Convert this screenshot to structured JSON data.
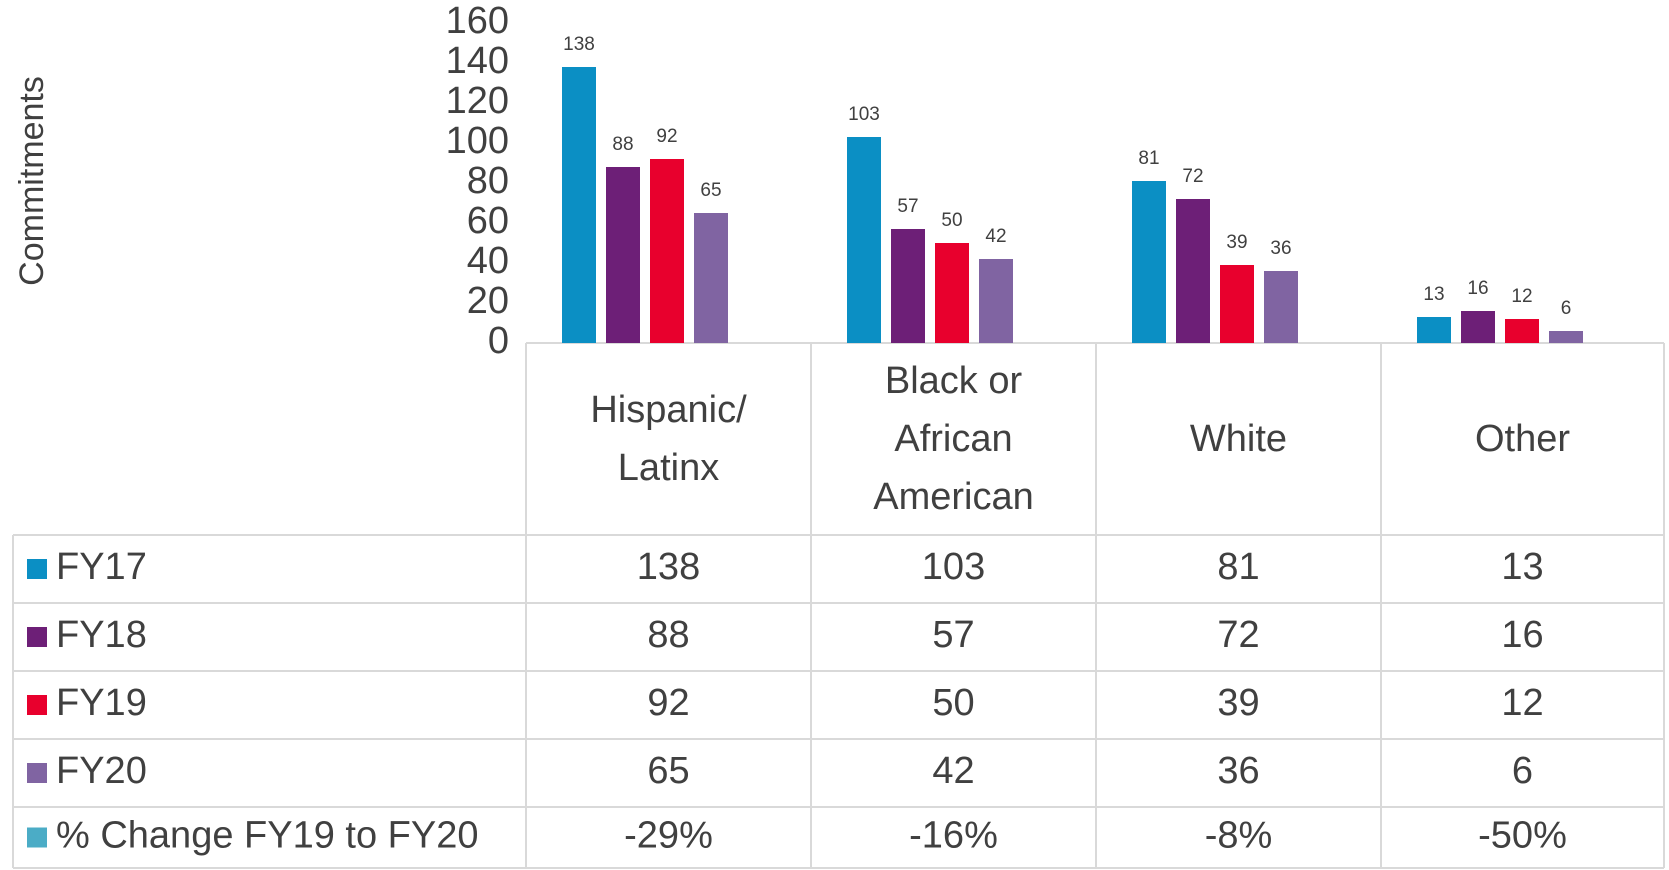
{
  "chart_data": {
    "type": "bar",
    "y_label": "Commitments",
    "categories": [
      "Hispanic/ Latinx",
      "Black or African American",
      "White",
      "Other"
    ],
    "series": [
      {
        "name": "FY17",
        "color": "#0b8fc4",
        "values": [
          138,
          103,
          81,
          13
        ]
      },
      {
        "name": "FY18",
        "color": "#6d1f77",
        "values": [
          88,
          57,
          72,
          16
        ]
      },
      {
        "name": "FY19",
        "color": "#e8002d",
        "values": [
          92,
          50,
          39,
          12
        ]
      },
      {
        "name": "FY20",
        "color": "#8064a2",
        "values": [
          65,
          42,
          36,
          6
        ]
      }
    ],
    "change_row": {
      "name": "% Change FY19 to FY20",
      "color": "#4bacc6",
      "values": [
        -29,
        -16,
        -8,
        -50
      ],
      "value_labels": [
        "-29%",
        "-16%",
        "-8%",
        "-50%"
      ]
    },
    "ylim": [
      0,
      160
    ],
    "yticks": [
      0,
      20,
      40,
      60,
      80,
      100,
      120,
      140,
      160
    ]
  }
}
